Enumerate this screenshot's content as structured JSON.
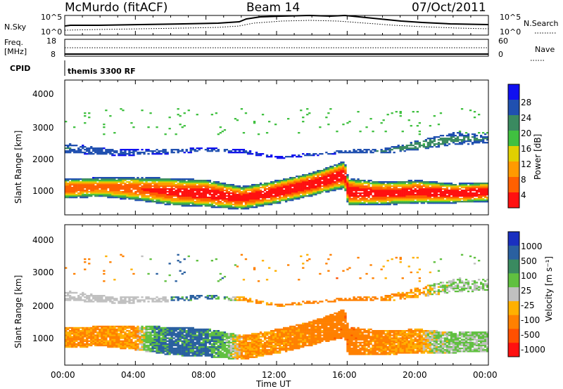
{
  "header": {
    "station": "McMurdo (fitACF)",
    "beam": "Beam 14",
    "date": "07/Oct/2011"
  },
  "noise_panel": {
    "left_label": "N.Sky",
    "right_label": "N.Search",
    "left_ticks": [
      "10^5",
      "10^0"
    ],
    "right_ticks": [
      "10^5",
      "10^0"
    ]
  },
  "freq_panel": {
    "left_label_line1": "Freq.",
    "left_label_line2": "[MHz]",
    "right_label": "Nave",
    "left_ticks": [
      "18",
      "8"
    ],
    "right_ticks": [
      "60",
      "0"
    ]
  },
  "cpid_panel": {
    "label": "CPID",
    "program": "themis 3300 RF"
  },
  "power_panel": {
    "ylabel": "Slant Range [km]",
    "yticks": [
      "4000",
      "3000",
      "2000",
      "1000"
    ],
    "colorbar_label": "Power [dB]",
    "colorbar_ticks": [
      "28",
      "24",
      "20",
      "16",
      "12",
      "8",
      "4"
    ],
    "colors": [
      "#1010f0",
      "#2050b0",
      "#3a8a60",
      "#40c040",
      "#e0d000",
      "#ff9a00",
      "#ff6000",
      "#ff1010"
    ]
  },
  "velocity_panel": {
    "ylabel": "Slant Range [km]",
    "yticks": [
      "4000",
      "3000",
      "2000",
      "1000"
    ],
    "colorbar_label": "Velocity [m s⁻¹]",
    "colorbar_ticks": [
      "1000",
      "500",
      "100",
      "25",
      "-25",
      "-100",
      "-500",
      "-1000"
    ],
    "colors": [
      "#1a30c0",
      "#2a60a0",
      "#3a8a60",
      "#60c040",
      "#c0c0c0",
      "#ffb000",
      "#ff8000",
      "#ff5000",
      "#ff1010"
    ]
  },
  "x_axis": {
    "label": "Time UT",
    "ticks": [
      "00:00",
      "04:00",
      "08:00",
      "12:00",
      "16:00",
      "20:00",
      "00:00"
    ]
  },
  "chart_data": [
    {
      "type": "heatmap",
      "title": "Power",
      "xlabel": "Time UT",
      "ylabel": "Slant Range [km]",
      "xlim": [
        0,
        24
      ],
      "ylim": [
        180,
        4500
      ],
      "color_scale": {
        "label": "Power [dB]",
        "min": 0,
        "max": 30
      },
      "bands": [
        {
          "name": "main",
          "x": [
            0,
            2,
            4,
            6,
            8,
            10,
            12,
            14,
            15.8,
            16,
            18,
            20,
            22,
            24
          ],
          "center_km": [
            1000,
            1050,
            1000,
            900,
            850,
            700,
            900,
            1150,
            1450,
            900,
            850,
            900,
            850,
            900
          ],
          "halfwidth_km": [
            250,
            250,
            300,
            350,
            350,
            300,
            300,
            300,
            350,
            350,
            300,
            300,
            250,
            250
          ],
          "peak_power_db": [
            26,
            24,
            26,
            28,
            30,
            28,
            30,
            30,
            30,
            30,
            28,
            29,
            30,
            30
          ]
        },
        {
          "name": "upper",
          "x": [
            0,
            3,
            6,
            8,
            10,
            12,
            16,
            18,
            20,
            22,
            24
          ],
          "center_km": [
            2300,
            2150,
            2200,
            2250,
            2200,
            2000,
            2200,
            2200,
            2400,
            2600,
            2600
          ],
          "halfwidth_km": [
            150,
            100,
            80,
            60,
            60,
            40,
            50,
            80,
            150,
            200,
            150
          ],
          "peak_power_db": [
            8,
            6,
            6,
            6,
            5,
            4,
            7,
            8,
            12,
            10,
            8
          ]
        }
      ]
    },
    {
      "type": "heatmap",
      "title": "Velocity",
      "xlabel": "Time UT",
      "ylabel": "Slant Range [km]",
      "xlim": [
        0,
        24
      ],
      "ylim": [
        180,
        4500
      ],
      "color_scale": {
        "label": "Velocity [m s⁻¹]",
        "min": -1000,
        "max": 1000
      },
      "velocity_ms": {
        "x": [
          0,
          2,
          4,
          5,
          6,
          8,
          9,
          10,
          12,
          14,
          16,
          18,
          20,
          21,
          22,
          24
        ],
        "values": [
          -200,
          -200,
          -150,
          300,
          400,
          350,
          200,
          -150,
          -200,
          -250,
          -300,
          -200,
          -150,
          50,
          100,
          100
        ]
      }
    }
  ]
}
